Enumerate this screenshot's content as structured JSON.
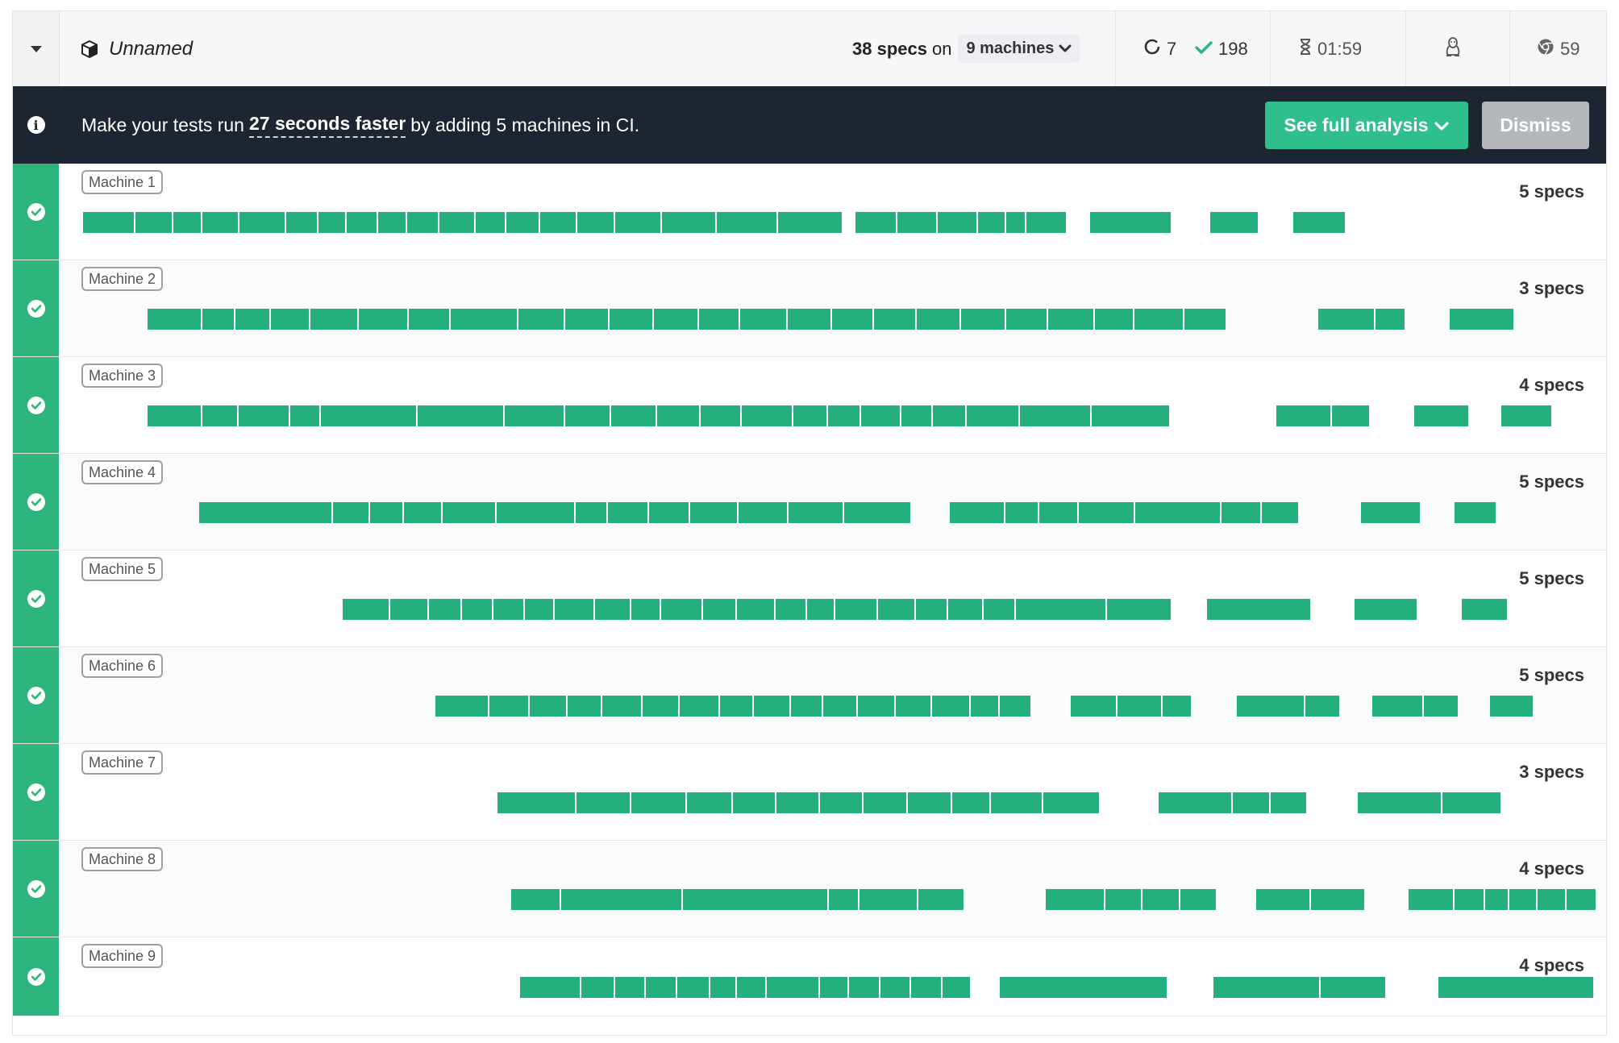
{
  "header": {
    "title": "Unnamed",
    "specs_count": "38 specs",
    "on": "on",
    "machines_label": "9 machines",
    "pending_count": "7",
    "passed_count": "198",
    "duration": "01:59",
    "browser_version": "59",
    "icons": {
      "collapse": "caret-down-icon",
      "project": "box-icon",
      "machines_chevron": "chevron-down-icon",
      "pending": "spinner-ring-icon",
      "passed": "check-icon",
      "duration": "hourglass-icon",
      "os": "linux-tux-icon",
      "browser": "chrome-icon"
    }
  },
  "banner": {
    "prefix": "Make your tests run",
    "highlight": "27 seconds faster",
    "suffix": "by adding 5 machines in CI.",
    "see_analysis_label": "See full analysis",
    "dismiss_label": "Dismiss",
    "icon": "info-icon"
  },
  "colors": {
    "status_passed": "#2db37c",
    "segment": "#23b07d",
    "banner_bg": "#1d2532",
    "primary_button": "#2fbf8d",
    "dismiss_button": "#b4b8bd"
  },
  "machines": [
    {
      "label": "Machine 1",
      "specs": "5 specs",
      "alt": false
    },
    {
      "label": "Machine 2",
      "specs": "3 specs",
      "alt": true
    },
    {
      "label": "Machine 3",
      "specs": "4 specs",
      "alt": false
    },
    {
      "label": "Machine 4",
      "specs": "5 specs",
      "alt": true
    },
    {
      "label": "Machine 5",
      "specs": "5 specs",
      "alt": false
    },
    {
      "label": "Machine 6",
      "specs": "5 specs",
      "alt": true
    },
    {
      "label": "Machine 7",
      "specs": "3 specs",
      "alt": false
    },
    {
      "label": "Machine 8",
      "specs": "4 specs",
      "alt": true
    },
    {
      "label": "Machine 9",
      "specs": "4 specs",
      "alt": false
    }
  ]
}
